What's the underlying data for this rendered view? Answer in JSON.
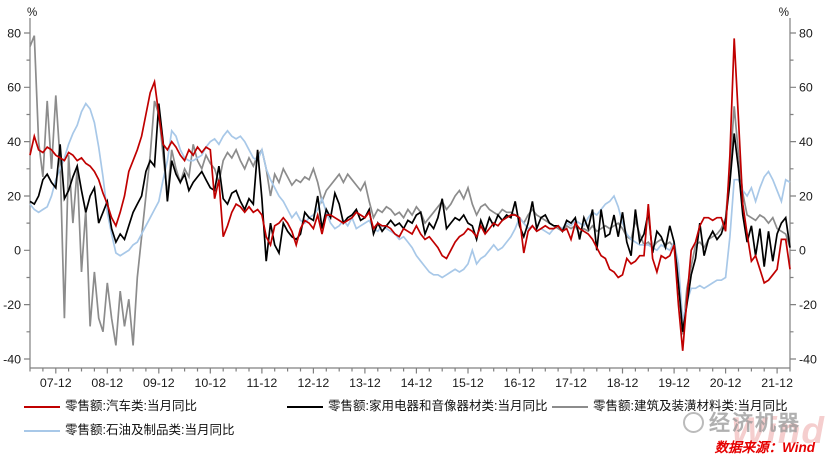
{
  "axes": {
    "unit": "%",
    "y_ticks": [
      80,
      60,
      40,
      20,
      0,
      -20,
      -40
    ],
    "y_minor_step": 10,
    "ylim": [
      -40,
      80
    ],
    "x_labels": [
      "07-12",
      "08-12",
      "09-12",
      "10-12",
      "11-12",
      "12-12",
      "13-12",
      "14-12",
      "15-12",
      "16-12",
      "17-12",
      "18-12",
      "19-12",
      "20-12",
      "21-12"
    ]
  },
  "legend": {
    "items": [
      {
        "label": "零售额:汽车类:当月同比",
        "color": "#C00000"
      },
      {
        "label": "零售额:家用电器和音像器材类:当月同比",
        "color": "#000000"
      },
      {
        "label": "零售额:建筑及装潢材料类:当月同比",
        "color": "#8C8C8C"
      },
      {
        "label": "零售额:石油及制品类:当月同比",
        "color": "#A8C8E8"
      }
    ]
  },
  "watermark": {
    "brand": "经济机器",
    "wind_text": "Wind"
  },
  "source": {
    "label": "数据来源：Wind"
  },
  "chart_data": {
    "type": "line",
    "frequency": "monthly",
    "x_start": "2007-06",
    "x_end": "2022-03",
    "ylim": [
      -40,
      80
    ],
    "grid": false,
    "legend_position": "bottom",
    "z_order": [
      2,
      3,
      1,
      0
    ],
    "series": [
      {
        "name": "零售额:汽车类:当月同比",
        "color": "#C00000",
        "values": [
          35,
          42,
          37,
          36,
          38,
          37,
          35,
          34,
          33,
          36,
          35,
          33,
          34,
          32,
          31,
          29,
          26,
          21,
          17,
          12,
          9,
          14,
          20,
          29,
          33,
          37,
          42,
          50,
          58,
          62,
          50,
          39,
          37,
          40,
          38,
          35,
          33,
          37,
          35,
          38,
          36,
          38,
          37,
          19,
          26,
          5,
          9,
          14,
          17,
          16,
          14,
          16,
          14,
          15,
          13,
          5,
          2,
          9,
          10,
          12,
          10,
          7,
          2,
          8,
          11,
          10,
          8,
          13,
          6,
          13,
          13,
          12,
          11,
          10,
          11,
          12,
          14,
          13,
          12,
          14,
          8,
          10,
          9,
          9,
          8,
          6,
          5,
          8,
          7,
          6,
          9,
          6,
          4,
          5,
          3,
          1,
          -2,
          -3,
          0,
          3,
          5,
          6,
          8,
          7,
          5,
          9,
          6,
          8,
          10,
          9,
          11,
          12,
          13,
          13,
          12,
          -1,
          7,
          9,
          7,
          8,
          9,
          8,
          8,
          9,
          7,
          8,
          4,
          10,
          8,
          7,
          6,
          4,
          1,
          -2,
          -3,
          -7,
          -8,
          -10,
          -9,
          -3,
          -5,
          -4,
          -2,
          -2,
          17,
          -3,
          -8,
          -2,
          -3,
          -2,
          2,
          -20,
          -37,
          -18,
          0,
          3,
          9,
          12,
          12,
          11,
          12,
          12,
          7,
          35,
          78,
          48,
          17,
          6,
          -4,
          -2,
          -7,
          -12,
          -11,
          -9,
          -7,
          4,
          4,
          -7
        ]
      },
      {
        "name": "零售额:家用电器和音像器材类:当月同比",
        "color": "#000000",
        "values": [
          18,
          17,
          20,
          26,
          28,
          25,
          23,
          39,
          19,
          22,
          27,
          31,
          22,
          14,
          20,
          23,
          10,
          14,
          18,
          8,
          3,
          6,
          4,
          9,
          14,
          17,
          20,
          29,
          33,
          31,
          54,
          40,
          18,
          33,
          28,
          25,
          28,
          22,
          25,
          27,
          29,
          26,
          23,
          22,
          31,
          19,
          17,
          21,
          22,
          18,
          15,
          19,
          17,
          37,
          19,
          -4,
          10,
          2,
          -1,
          10,
          7,
          5,
          4,
          6,
          14,
          12,
          11,
          20,
          8,
          15,
          12,
          21,
          17,
          10,
          12,
          13,
          15,
          11,
          12,
          15,
          6,
          10,
          7,
          9,
          11,
          9,
          10,
          8,
          11,
          10,
          13,
          14,
          6,
          10,
          8,
          12,
          19,
          8,
          10,
          12,
          11,
          13,
          10,
          9,
          4,
          11,
          7,
          12,
          9,
          13,
          11,
          13,
          12,
          18,
          9,
          5,
          10,
          18,
          8,
          12,
          13,
          10,
          9,
          9,
          7,
          11,
          10,
          12,
          4,
          12,
          8,
          15,
          0,
          15,
          5,
          6,
          13,
          5,
          14,
          3,
          -2,
          15,
          3,
          6,
          14,
          -1,
          7,
          5,
          1,
          9,
          3,
          -12,
          -30,
          -20,
          -9,
          -3,
          10,
          -2,
          4,
          7,
          4,
          6,
          11,
          25,
          43,
          30,
          13,
          3,
          9,
          -2,
          8,
          -6,
          7,
          -4,
          6,
          10,
          12,
          1
        ]
      },
      {
        "name": "零售额:建筑及装潢材料类:当月同比",
        "color": "#8C8C8C",
        "values": [
          75,
          79,
          40,
          27,
          55,
          30,
          57,
          33,
          -25,
          35,
          10,
          30,
          -8,
          15,
          -28,
          -8,
          -25,
          -30,
          -12,
          -25,
          -35,
          -15,
          -28,
          -18,
          -35,
          -10,
          5,
          20,
          35,
          55,
          50,
          35,
          20,
          37,
          30,
          25,
          30,
          27,
          39,
          33,
          30,
          35,
          32,
          30,
          25,
          33,
          36,
          34,
          37,
          33,
          30,
          34,
          31,
          35,
          37,
          30,
          20,
          28,
          25,
          30,
          27,
          24,
          26,
          25,
          27,
          26,
          30,
          25,
          18,
          22,
          24,
          26,
          28,
          25,
          28,
          26,
          24,
          22,
          25,
          18,
          12,
          15,
          14,
          16,
          15,
          13,
          14,
          12,
          15,
          13,
          16,
          14,
          10,
          12,
          14,
          16,
          18,
          15,
          17,
          20,
          22,
          19,
          23,
          17,
          13,
          16,
          17,
          15,
          14,
          13,
          15,
          14,
          14,
          13,
          12,
          10,
          13,
          15,
          13,
          12,
          11,
          10,
          9,
          8,
          7,
          9,
          8,
          9,
          6,
          8,
          7,
          9,
          7,
          8,
          9,
          8,
          9,
          10,
          8,
          5,
          4,
          11,
          6,
          2,
          3,
          1,
          3,
          4,
          2,
          3,
          1,
          -8,
          -31,
          -14,
          -6,
          2,
          3,
          1,
          4,
          5,
          6,
          8,
          12,
          30,
          53,
          35,
          21,
          13,
          12,
          11,
          13,
          12,
          10,
          12,
          8,
          7,
          6,
          1
        ]
      },
      {
        "name": "零售额:石油及制品类:当月同比",
        "color": "#A8C8E8",
        "values": [
          17,
          15,
          14,
          15,
          16,
          20,
          26,
          30,
          34,
          39,
          43,
          46,
          51,
          54,
          52,
          47,
          38,
          27,
          14,
          6,
          -1,
          -2,
          -1,
          0,
          2,
          3,
          6,
          9,
          12,
          15,
          18,
          26,
          33,
          44,
          42,
          37,
          34,
          33,
          33,
          34,
          35,
          38,
          40,
          41,
          39,
          42,
          44,
          42,
          41,
          42,
          40,
          37,
          34,
          33,
          37,
          30,
          26,
          23,
          20,
          18,
          15,
          12,
          14,
          11,
          10,
          12,
          13,
          15,
          19,
          14,
          10,
          8,
          9,
          11,
          9,
          12,
          8,
          9,
          10,
          11,
          8,
          7,
          9,
          8,
          7,
          6,
          4,
          5,
          3,
          1,
          -2,
          -4,
          -6,
          -8,
          -9,
          -9,
          -10,
          -9,
          -8,
          -7,
          -8,
          -7,
          -5,
          0,
          -5,
          -3,
          -2,
          0,
          2,
          0,
          1,
          3,
          5,
          8,
          12,
          10,
          8,
          9,
          7,
          8,
          7,
          6,
          8,
          9,
          8,
          10,
          9,
          11,
          10,
          9,
          12,
          14,
          13,
          15,
          17,
          18,
          20,
          16,
          10,
          6,
          4,
          3,
          2,
          2,
          2,
          1,
          0,
          2,
          1,
          0,
          3,
          -5,
          -26,
          -19,
          -14,
          -14,
          -13,
          -14,
          -13,
          -12,
          -11,
          -11,
          -10,
          5,
          26,
          26,
          22,
          20,
          23,
          18,
          23,
          27,
          29,
          26,
          22,
          18,
          26,
          25
        ]
      }
    ]
  }
}
